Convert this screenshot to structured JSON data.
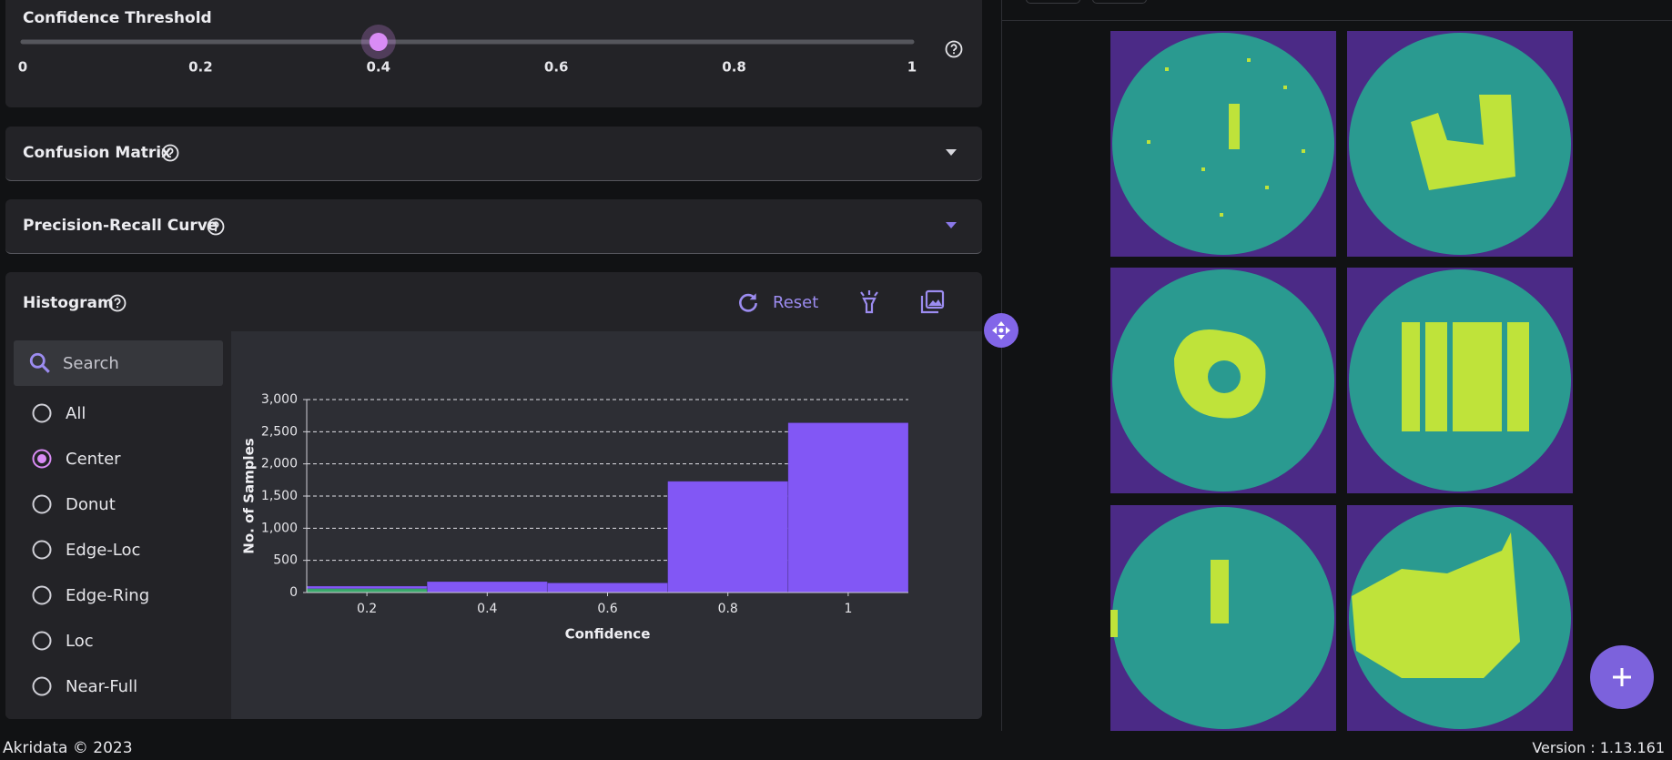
{
  "slider": {
    "title": "Confidence Threshold",
    "value": 0.4,
    "ticks": [
      0,
      0.2,
      0.4,
      0.6,
      0.8,
      1
    ]
  },
  "sections": [
    "Confusion Matrix",
    "Precision-Recall Curve"
  ],
  "histogram_panel": {
    "title": "Histogram",
    "reset": "Reset",
    "search_placeholder": "Search",
    "filters": [
      {
        "label": "All",
        "checked": false
      },
      {
        "label": "Center",
        "checked": true
      },
      {
        "label": "Donut",
        "checked": false
      },
      {
        "label": "Edge-Loc",
        "checked": false
      },
      {
        "label": "Edge-Ring",
        "checked": false
      },
      {
        "label": "Loc",
        "checked": false
      },
      {
        "label": "Near-Full",
        "checked": false
      }
    ]
  },
  "chart_data": {
    "type": "histogram",
    "xlabel": "Confidence",
    "ylabel": "No. of Samples",
    "bins": [
      0.1,
      0.3,
      0.5,
      0.7,
      0.9,
      1.1
    ],
    "series": [
      {
        "color": "#8257f5",
        "values": [
          100,
          170,
          150,
          1730,
          2640
        ]
      },
      {
        "color": "#3aa86b",
        "values": [
          60,
          0,
          0,
          0,
          0
        ]
      }
    ],
    "xlim": [
      0.1,
      1.1
    ],
    "xticks": [
      0.2,
      0.4,
      0.6,
      0.8,
      1
    ],
    "ylim": [
      0,
      3000
    ],
    "yticks": [
      0,
      500,
      {
        "value": 1000,
        "label": "1,000"
      },
      {
        "value": 1500,
        "label": "1,500"
      },
      {
        "value": 2000,
        "label": "2,000"
      },
      {
        "value": 2500,
        "label": "2,500"
      },
      {
        "value": 3000,
        "label": "3,000"
      }
    ],
    "grid": true
  },
  "footer": {
    "left": "Akridata © 2023",
    "right": "Version : 1.13.161"
  }
}
